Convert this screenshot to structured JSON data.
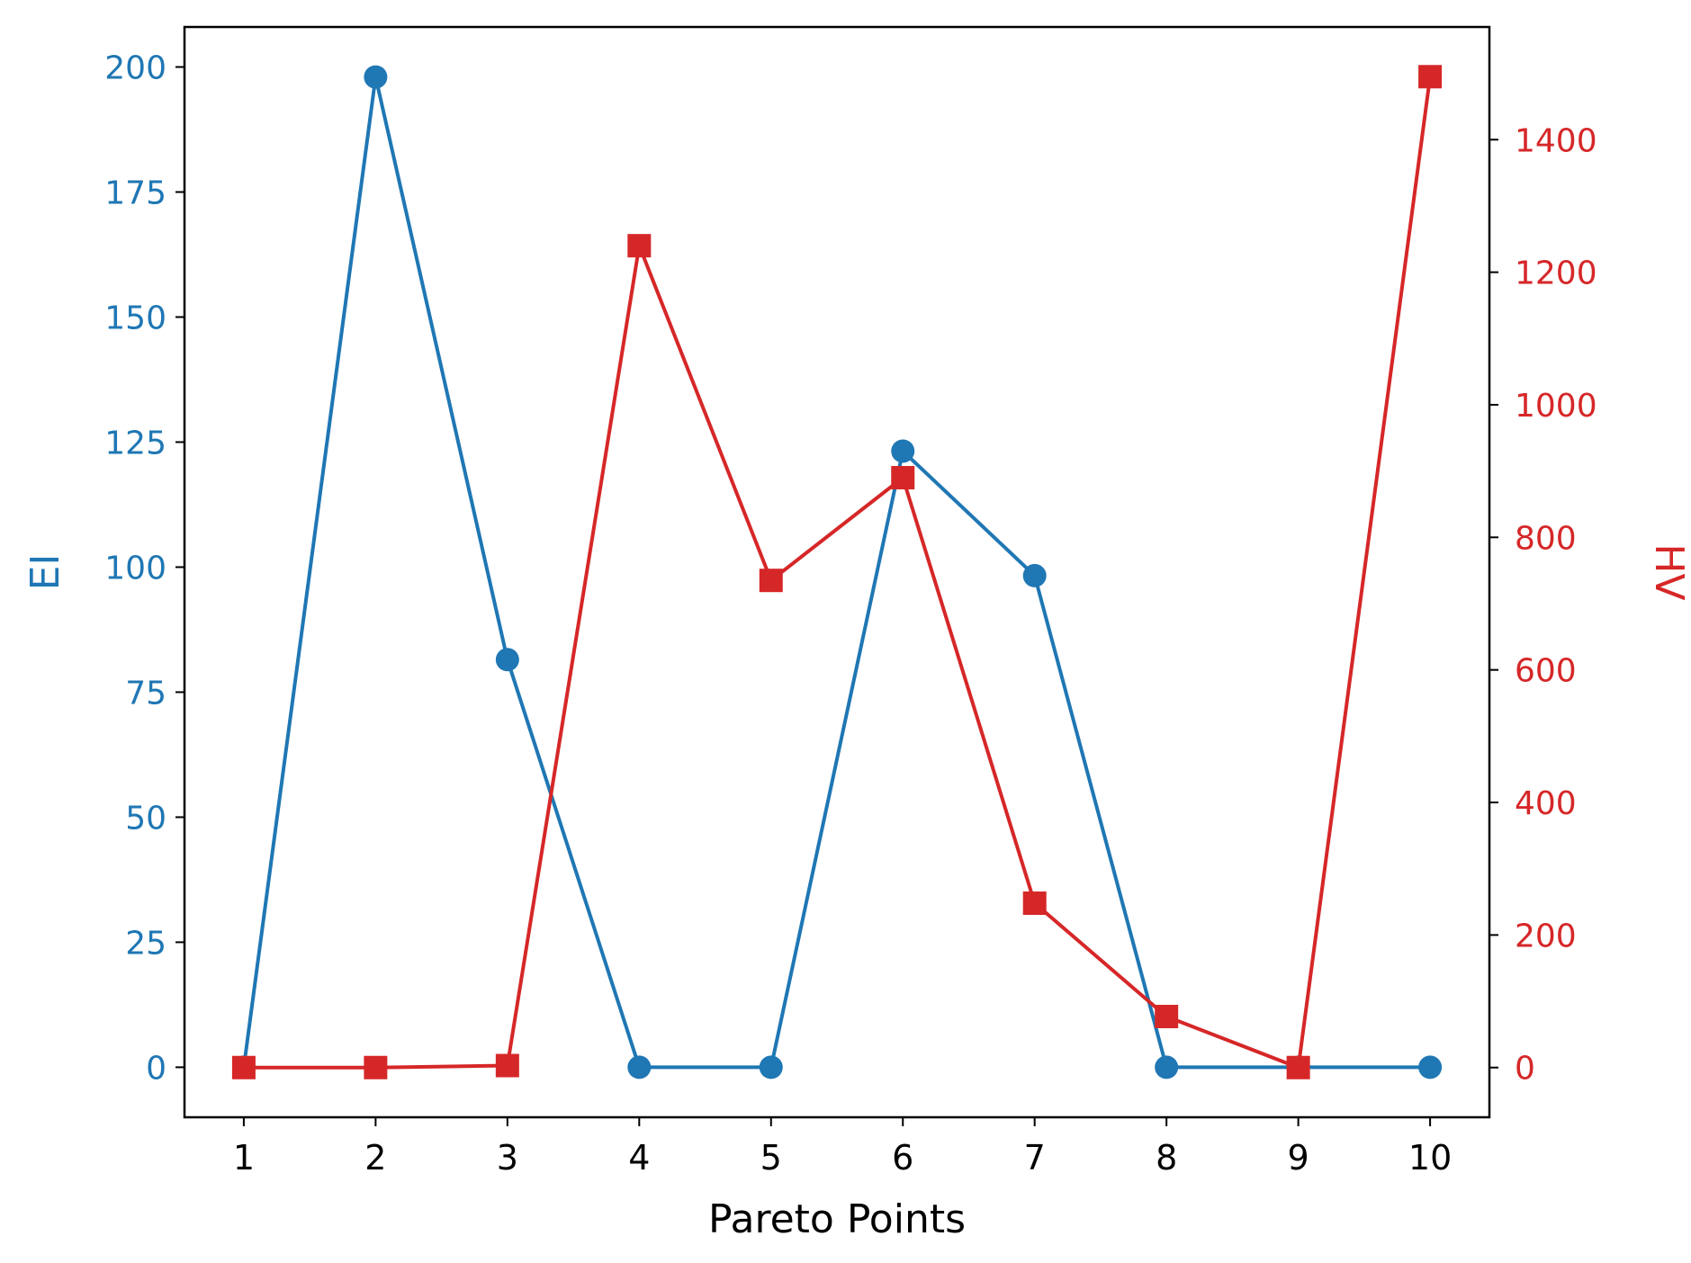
{
  "chart_data": {
    "type": "line",
    "xlabel": "Pareto Points",
    "x": [
      1,
      2,
      3,
      4,
      5,
      6,
      7,
      8,
      9,
      10
    ],
    "xlim": [
      0.55,
      10.45
    ],
    "x_ticks": [
      "1",
      "2",
      "3",
      "4",
      "5",
      "6",
      "7",
      "8",
      "9",
      "10"
    ],
    "grid": false,
    "axes": {
      "left": {
        "label": "EI",
        "color": "#1f77b4",
        "ylim": [
          -10,
          208
        ],
        "ticks": [
          0,
          25,
          50,
          75,
          100,
          125,
          150,
          175,
          200
        ],
        "tick_labels": [
          "0",
          "25",
          "50",
          "75",
          "100",
          "125",
          "150",
          "175",
          "200"
        ]
      },
      "right": {
        "label": "HV",
        "color": "#d62728",
        "ylim": [
          -75,
          1570
        ],
        "ticks": [
          0,
          200,
          400,
          600,
          800,
          1000,
          1200,
          1400
        ],
        "tick_labels": [
          "0",
          "200",
          "400",
          "600",
          "800",
          "1000",
          "1200",
          "1400"
        ]
      }
    },
    "series": [
      {
        "axis": "left",
        "marker": "circle",
        "color": "#1f77b4",
        "values": [
          0,
          198,
          81.5,
          0,
          0,
          123.2,
          98.3,
          0,
          0,
          0
        ]
      },
      {
        "axis": "right",
        "marker": "square",
        "color": "#d62728",
        "values": [
          0,
          0,
          3,
          1240,
          735,
          890,
          248,
          77,
          0,
          1495
        ]
      }
    ]
  }
}
